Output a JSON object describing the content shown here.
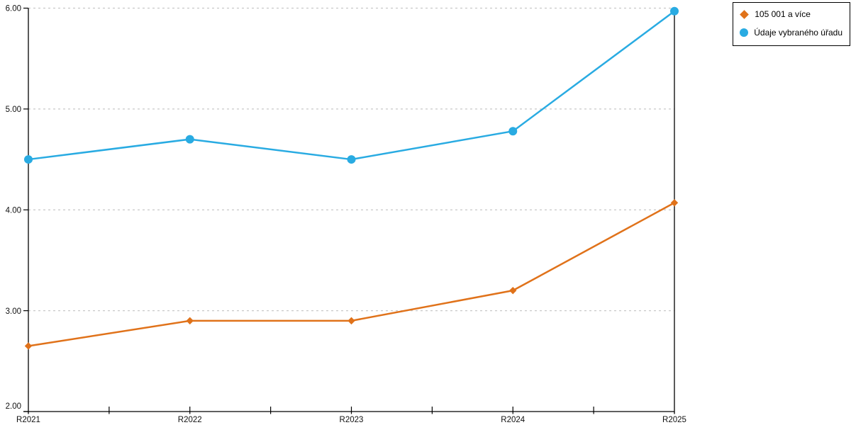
{
  "chart_data": {
    "type": "line",
    "title": "",
    "xlabel": "",
    "ylabel": "",
    "categories": [
      "R2021",
      "R2022",
      "R2023",
      "R2024",
      "R2025"
    ],
    "series": [
      {
        "name": "105 001 a více",
        "marker": "diamond",
        "color": "#E0721A",
        "values": [
          2.65,
          2.9,
          2.9,
          3.2,
          4.07
        ]
      },
      {
        "name": "Údaje vybraného úřadu",
        "marker": "circle",
        "color": "#29ABE2",
        "values": [
          4.5,
          4.7,
          4.5,
          4.78,
          5.97
        ]
      }
    ],
    "ylim": [
      2,
      6
    ],
    "y_ticks": [
      "2.00",
      "3.00",
      "4.00",
      "5.00",
      "6.00"
    ],
    "grid": "horizontal-dashed",
    "legend_position": "top-right"
  },
  "colors": {
    "background": "#ffffff",
    "grid": "#c8c8c8",
    "axis": "#000000",
    "text": "#111111",
    "legend_border": "#000000"
  }
}
